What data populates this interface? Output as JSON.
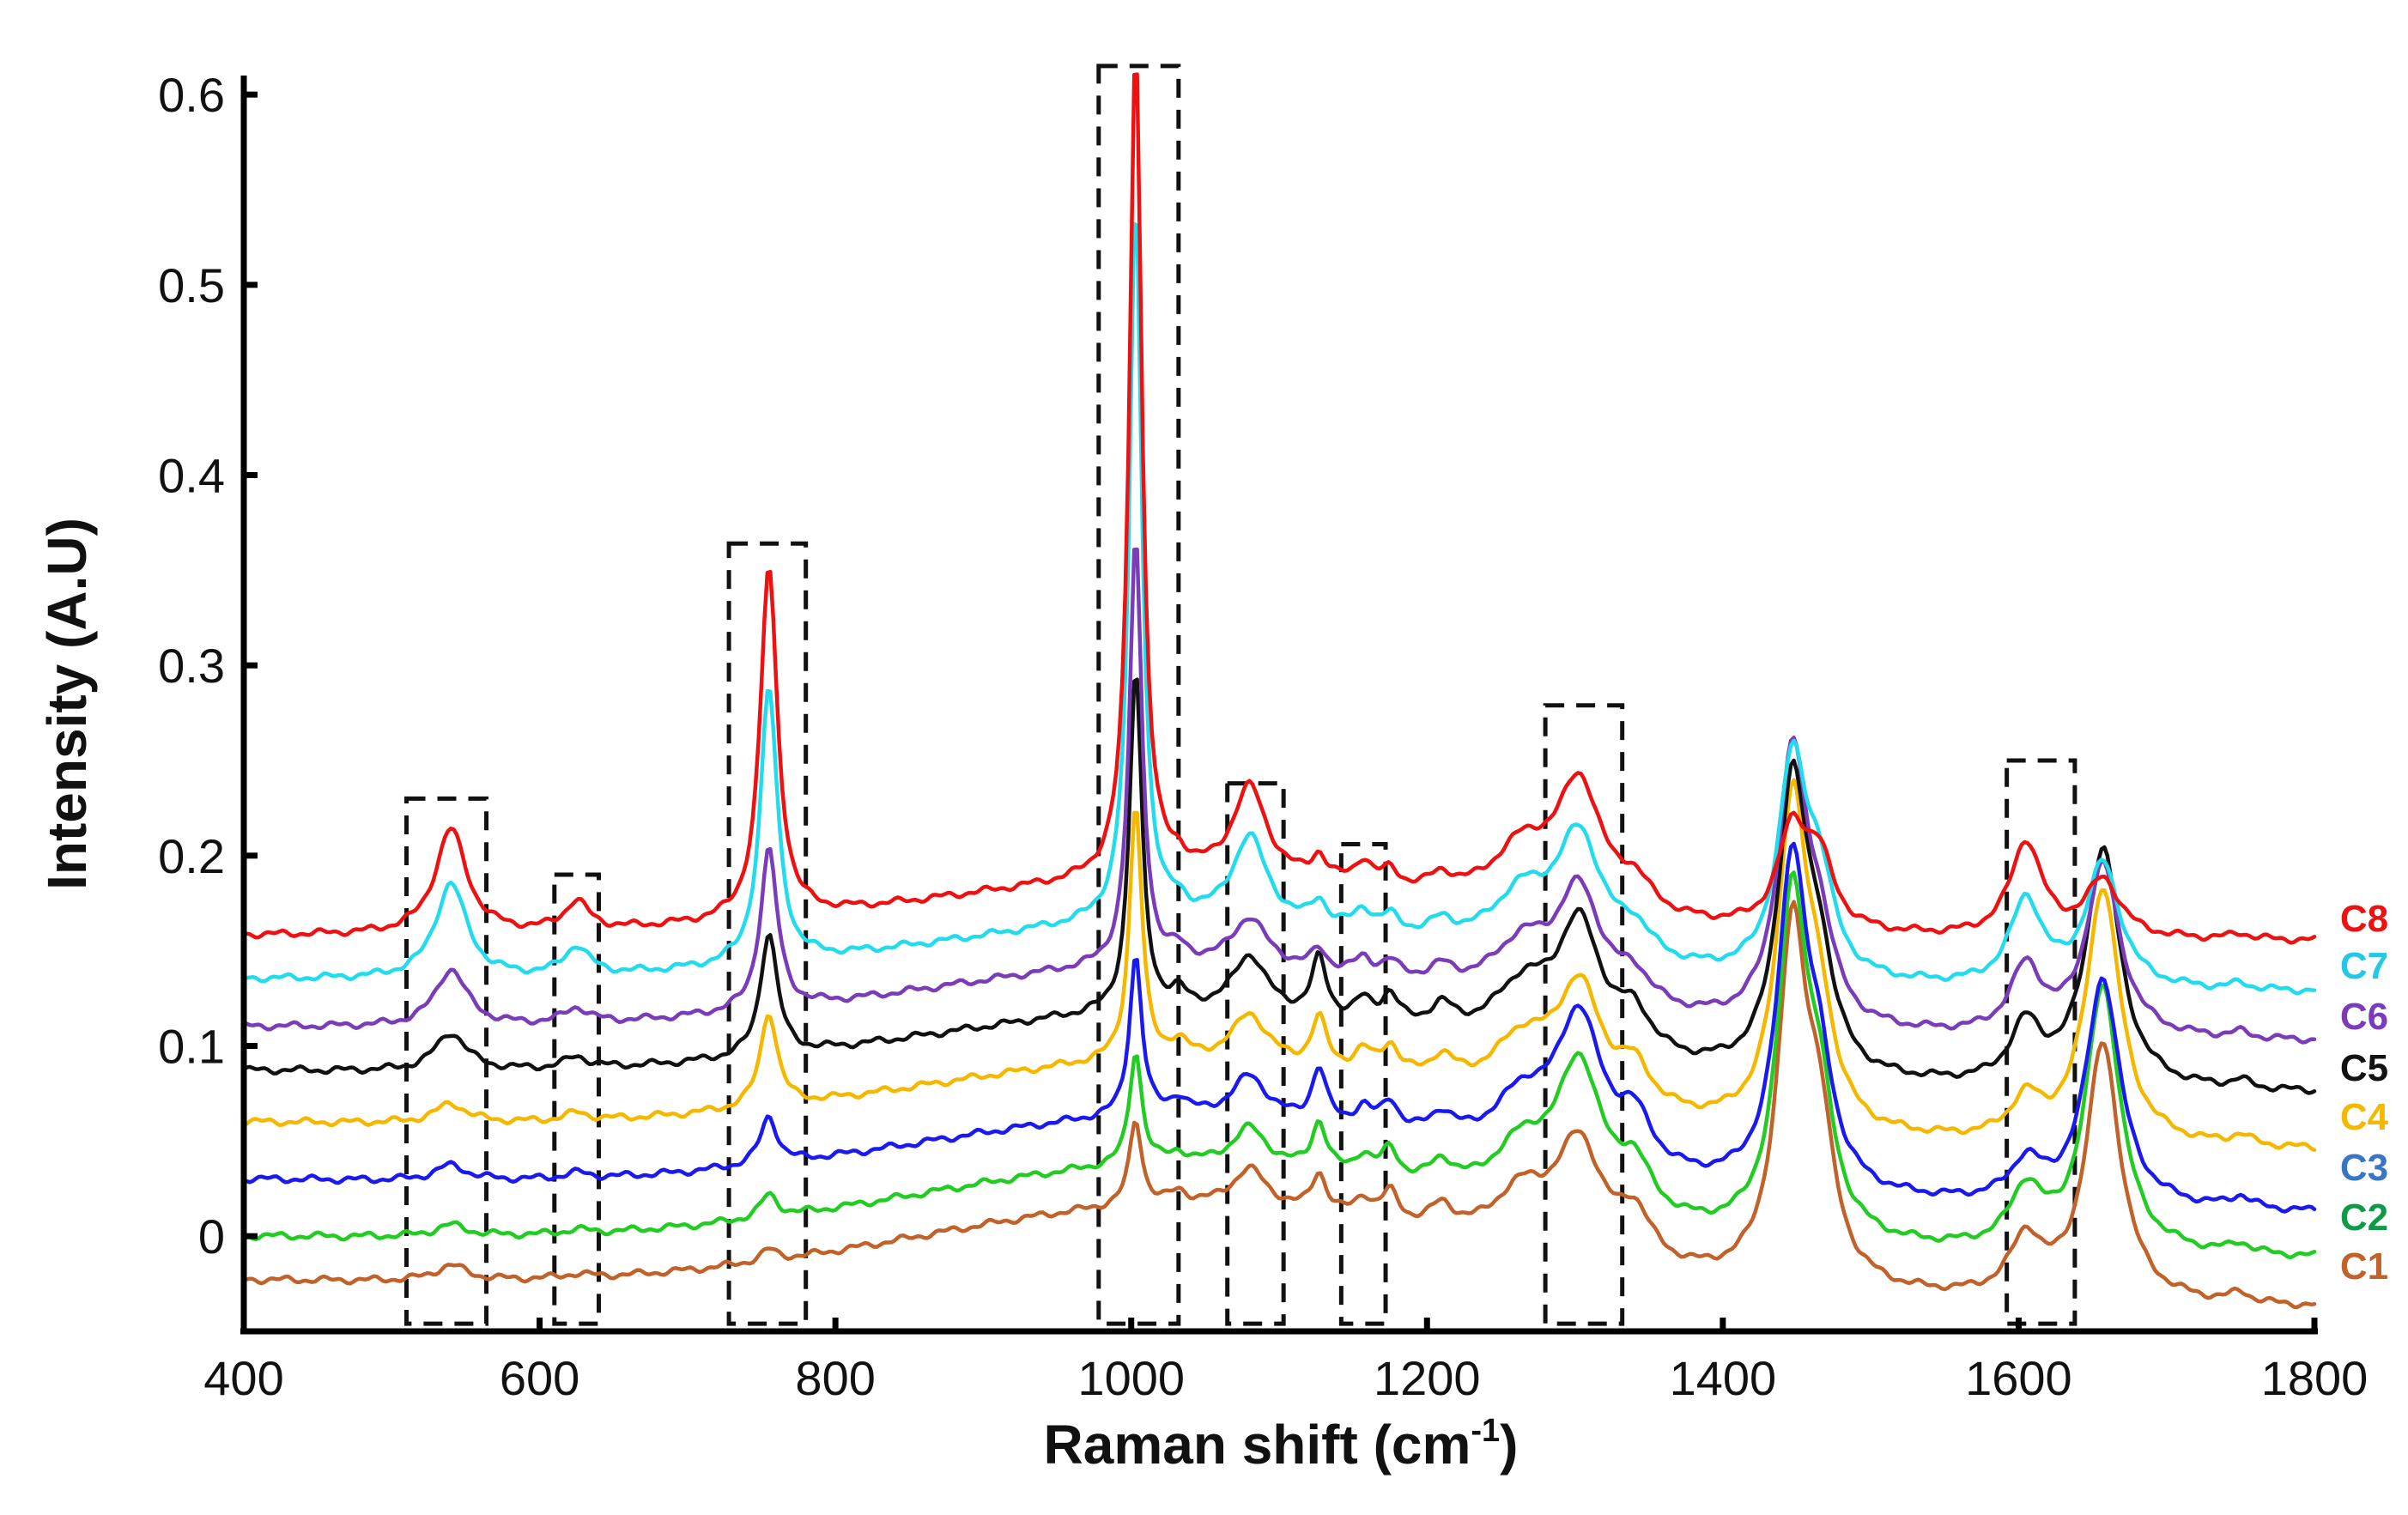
{
  "chart_data": {
    "type": "line",
    "title": "",
    "xlabel": "Raman shift (cm",
    "xlabel_sup": "-1",
    "xlabel_end": ")",
    "ylabel": "Intensity (A.U)",
    "xlim": [
      400,
      1800
    ],
    "ylim": [
      -0.05,
      0.61
    ],
    "xticks": [
      400,
      600,
      800,
      1000,
      1200,
      1400,
      1600,
      1800
    ],
    "xtick_labels": [
      "400",
      "600",
      "800",
      "1000",
      "1200",
      "1400",
      "1600",
      "1800"
    ],
    "yticks": [
      0,
      0.1,
      0.2,
      0.3,
      0.4,
      0.5,
      0.6
    ],
    "ytick_labels": [
      "0",
      "0.1",
      "0.2",
      "0.3",
      "0.4",
      "0.5",
      "0.6"
    ],
    "peaks": [
      {
        "c": 540,
        "w": 13
      },
      {
        "c": 625,
        "w": 10
      },
      {
        "c": 755,
        "w": 7
      },
      {
        "c": 1003,
        "w": 5
      },
      {
        "c": 1032,
        "w": 7
      },
      {
        "c": 1080,
        "w": 14
      },
      {
        "c": 1127,
        "w": 6
      },
      {
        "c": 1157,
        "w": 7
      },
      {
        "c": 1175,
        "w": 7
      },
      {
        "c": 1210,
        "w": 10
      },
      {
        "c": 1265,
        "w": 25
      },
      {
        "c": 1303,
        "w": 18
      },
      {
        "c": 1340,
        "w": 14
      },
      {
        "c": 1447,
        "w": 12
      },
      {
        "c": 1465,
        "w": 12
      },
      {
        "c": 1605,
        "w": 13
      },
      {
        "c": 1657,
        "w": 14
      },
      {
        "c": 1750,
        "w": 8
      }
    ],
    "series": [
      {
        "name": "C1",
        "color": "#c0622a",
        "start": -0.023,
        "end": -0.038,
        "broad": 0.045,
        "amps": [
          0.008,
          0.002,
          0.006,
          0.045,
          0.006,
          0.02,
          0.02,
          0.01,
          0.015,
          0.012,
          0.03,
          0.058,
          0.025,
          0.18,
          0.07,
          0.03,
          0.135,
          0.005
        ]
      },
      {
        "name": "C2",
        "color": "#22cc22",
        "end_color": "#0f9a4a",
        "start": 0.0,
        "end": -0.012,
        "broad": 0.042,
        "amps": [
          0.006,
          0.002,
          0.012,
          0.06,
          0.005,
          0.02,
          0.025,
          0.01,
          0.015,
          0.012,
          0.03,
          0.075,
          0.025,
          0.175,
          0.06,
          0.03,
          0.14,
          0.005
        ]
      },
      {
        "name": "C3",
        "color": "#1a1aee",
        "start": 0.03,
        "end": 0.012,
        "broad": 0.04,
        "amps": [
          0.008,
          0.003,
          0.025,
          0.085,
          0.008,
          0.022,
          0.028,
          0.01,
          0.015,
          0.012,
          0.03,
          0.075,
          0.025,
          0.17,
          0.05,
          0.02,
          0.12,
          0.006
        ]
      },
      {
        "name": "C4",
        "color": "#f5b800",
        "start": 0.06,
        "end": 0.045,
        "broad": 0.038,
        "amps": [
          0.01,
          0.004,
          0.05,
          0.135,
          0.008,
          0.025,
          0.025,
          0.01,
          0.015,
          0.012,
          0.03,
          0.06,
          0.02,
          0.17,
          0.05,
          0.02,
          0.135,
          0.005
        ]
      },
      {
        "name": "C5",
        "color": "#111111",
        "start": 0.087,
        "end": 0.075,
        "broad": 0.035,
        "amps": [
          0.02,
          0.006,
          0.065,
          0.18,
          0.008,
          0.03,
          0.03,
          0.01,
          0.015,
          0.012,
          0.03,
          0.065,
          0.02,
          0.15,
          0.05,
          0.03,
          0.125,
          0.004
        ]
      },
      {
        "name": "C6",
        "color": "#7a3cb8",
        "start": 0.11,
        "end": 0.102,
        "broad": 0.035,
        "amps": [
          0.03,
          0.008,
          0.085,
          0.225,
          0.006,
          0.025,
          0.01,
          0.008,
          0.008,
          0.008,
          0.028,
          0.058,
          0.015,
          0.14,
          0.04,
          0.035,
          0.09,
          0.003
        ]
      },
      {
        "name": "C7",
        "color": "#22dcee",
        "start": 0.135,
        "end": 0.128,
        "broad": 0.032,
        "amps": [
          0.05,
          0.015,
          0.145,
          0.38,
          0.006,
          0.045,
          0.012,
          0.01,
          0.008,
          0.008,
          0.03,
          0.062,
          0.015,
          0.11,
          0.045,
          0.045,
          0.065,
          0.003
        ]
      },
      {
        "name": "C8",
        "color": "#ee1111",
        "start": 0.158,
        "end": 0.155,
        "broad": 0.03,
        "amps": [
          0.055,
          0.015,
          0.185,
          0.44,
          0.006,
          0.048,
          0.012,
          0.012,
          0.008,
          0.008,
          0.03,
          0.065,
          0.015,
          0.05,
          0.035,
          0.05,
          0.03,
          0.003
        ]
      }
    ],
    "series_labels": [
      {
        "text": "C8",
        "color": "#ee1111"
      },
      {
        "text": "C7",
        "color": "#22c8e6"
      },
      {
        "text": "C6",
        "color": "#7a3cb8"
      },
      {
        "text": "C5",
        "color": "#111111"
      },
      {
        "text": "C4",
        "color": "#f5b800"
      },
      {
        "text": "C3",
        "color": "#3a74c4"
      },
      {
        "text": "C2",
        "color": "#0f9a4a"
      },
      {
        "text": "C1",
        "color": "#c0622a"
      }
    ],
    "highlight_regions": [
      {
        "x0": 510,
        "x1": 564,
        "ytop": 0.23
      },
      {
        "x0": 610,
        "x1": 640,
        "ytop": 0.19
      },
      {
        "x0": 728,
        "x1": 780,
        "ytop": 0.364
      },
      {
        "x0": 978,
        "x1": 1032,
        "ytop": 0.615
      },
      {
        "x0": 1065,
        "x1": 1103,
        "ytop": 0.238
      },
      {
        "x0": 1142,
        "x1": 1172,
        "ytop": 0.206
      },
      {
        "x0": 1280,
        "x1": 1332,
        "ytop": 0.279
      },
      {
        "x0": 1592,
        "x1": 1638,
        "ytop": 0.25
      }
    ],
    "highlight_bottom": -0.046
  }
}
